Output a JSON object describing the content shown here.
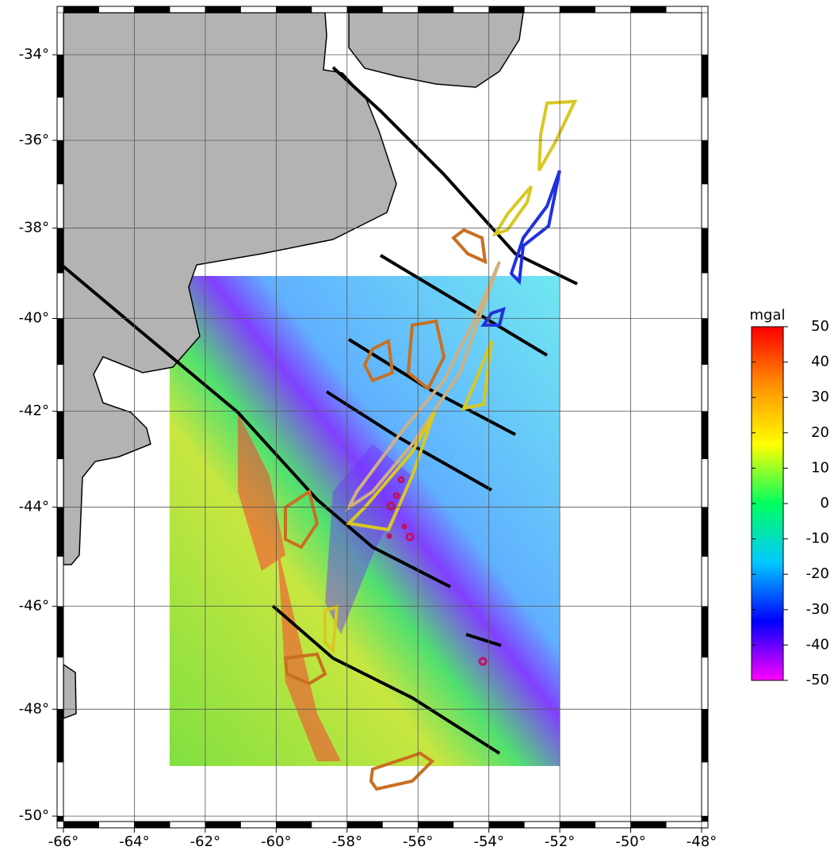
{
  "map": {
    "type": "map",
    "projection": "mercator",
    "grid": true,
    "xlim": [
      -66,
      -48
    ],
    "ylim": [
      -50.1,
      -33
    ],
    "xticks": [
      {
        "value": -66,
        "label": "-66°"
      },
      {
        "value": -64,
        "label": "-64°"
      },
      {
        "value": -62,
        "label": "-62°"
      },
      {
        "value": -60,
        "label": "-60°"
      },
      {
        "value": -58,
        "label": "-58°"
      },
      {
        "value": -56,
        "label": "-56°"
      },
      {
        "value": -54,
        "label": "-54°"
      },
      {
        "value": -52,
        "label": "-52°"
      },
      {
        "value": -50,
        "label": "-50°"
      },
      {
        "value": -48,
        "label": "-48°"
      }
    ],
    "yticks": [
      {
        "value": -34,
        "label": "-34°"
      },
      {
        "value": -36,
        "label": "-36°"
      },
      {
        "value": -38,
        "label": "-38°"
      },
      {
        "value": -40,
        "label": "-40°"
      },
      {
        "value": -42,
        "label": "-42°"
      },
      {
        "value": -44,
        "label": "-44°"
      },
      {
        "value": -46,
        "label": "-46°"
      },
      {
        "value": -48,
        "label": "-48°"
      },
      {
        "value": -50,
        "label": "-50°"
      }
    ],
    "colorbar": {
      "label": "mgal",
      "clim": [
        -50,
        50
      ],
      "ticks": [
        50,
        40,
        30,
        20,
        10,
        0,
        -10,
        -20,
        -30,
        -40,
        -50
      ],
      "colors": [
        "#ff00ff",
        "#0000ff",
        "#00c8ff",
        "#00ff60",
        "#ffff00",
        "#ff9000",
        "#ff0000"
      ]
    }
  }
}
